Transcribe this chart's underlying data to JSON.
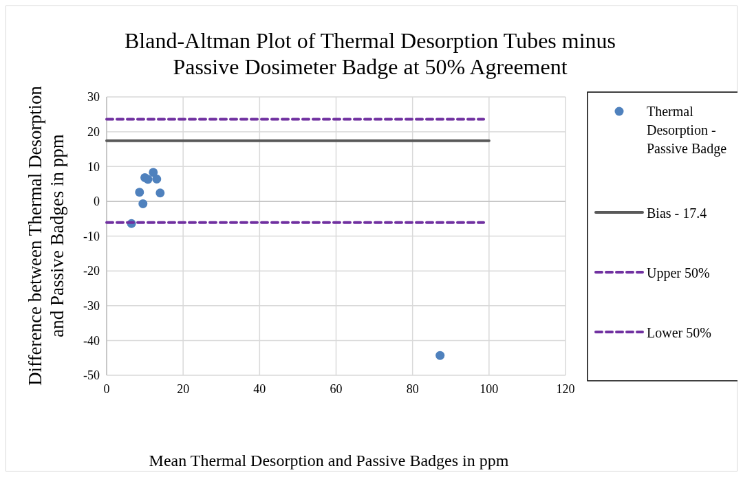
{
  "chart_data": {
    "type": "scatter",
    "title": "Bland-Altman Plot of Thermal Desorption Tubes minus Passive Dosimeter Badge at 50% Agreement",
    "xlabel": "Mean Thermal Desorption and Passive Badges in ppm",
    "ylabel": "Difference between Thermal Desorption and Passive Badges in ppm",
    "xlim": [
      0,
      120
    ],
    "xticks": [
      0,
      20,
      40,
      60,
      80,
      100,
      120
    ],
    "ylim": [
      -50,
      30
    ],
    "yticks": [
      -50,
      -40,
      -30,
      -20,
      -10,
      0,
      10,
      20,
      30
    ],
    "grid": true,
    "legend": "right",
    "series": [
      {
        "name": "Thermal Desorption - Passive Badge",
        "marker": "circle",
        "color": "#4f81bd",
        "x": [
          6.5,
          8.6,
          9.5,
          10.0,
          10.8,
          12.2,
          13.1,
          14.0,
          87.2
        ],
        "values": [
          -6.4,
          2.6,
          -0.7,
          6.8,
          6.3,
          8.3,
          6.4,
          2.4,
          -44.3
        ]
      },
      {
        "name": "Bias - 17.4",
        "type": "line",
        "line_style": "solid",
        "color": "#595959",
        "x": [
          0,
          100
        ],
        "values": [
          17.4,
          17.4
        ]
      },
      {
        "name": "Upper 50%",
        "type": "line",
        "line_style": "dashed",
        "color": "#7030a0",
        "x": [
          0,
          98.6
        ],
        "values": [
          23.6,
          23.6
        ]
      },
      {
        "name": "Lower 50%",
        "type": "line",
        "line_style": "dashed",
        "color": "#7030a0",
        "x": [
          0,
          98.6
        ],
        "values": [
          -6.1,
          -6.1
        ]
      }
    ]
  }
}
